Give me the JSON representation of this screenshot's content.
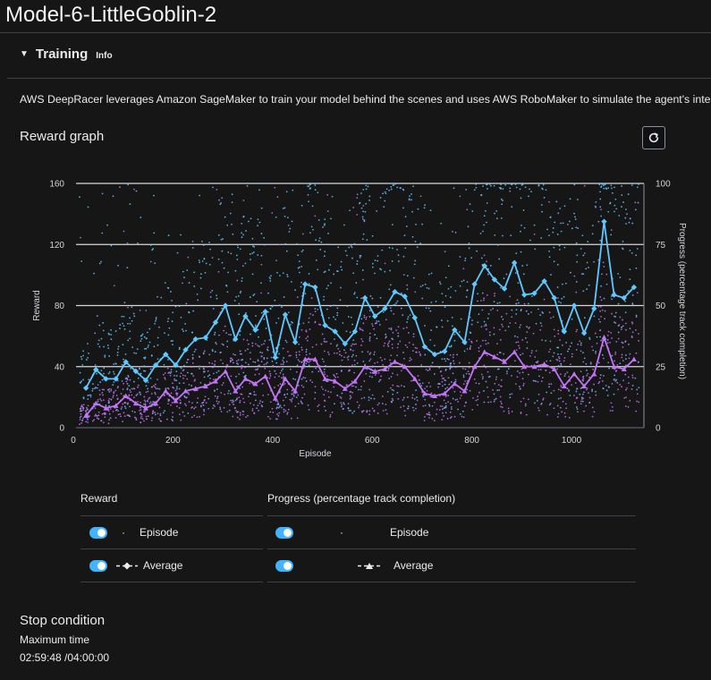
{
  "page": {
    "title": "Model-6-LittleGoblin-2"
  },
  "training": {
    "section_title": "Training",
    "info_label": "Info",
    "description": "AWS DeepRacer leverages Amazon SageMaker to train your model behind the scenes and uses AWS RoboMaker to simulate the agent's interaction"
  },
  "reward_graph": {
    "title": "Reward graph",
    "refresh_icon": "refresh-icon"
  },
  "chart_data": {
    "type": "line",
    "xlabel": "Episode",
    "ylabel": "Reward",
    "ylabel_right": "Progress (percentage track completion)",
    "xlim": [
      0,
      1140
    ],
    "ylim": [
      0,
      160
    ],
    "ylim_right": [
      0,
      100
    ],
    "x_ticks": [
      0,
      200,
      400,
      600,
      800,
      1000
    ],
    "y_ticks": [
      0,
      40,
      80,
      120,
      160
    ],
    "y_ticks_right": [
      0,
      25,
      50,
      75,
      100
    ],
    "grid": true,
    "colors": {
      "reward": "#5fc8ff",
      "progress": "#c274f5"
    },
    "series": [
      {
        "name": "Reward Average",
        "axis": "left",
        "x": [
          20,
          40,
          60,
          80,
          100,
          120,
          140,
          160,
          180,
          200,
          220,
          240,
          260,
          280,
          300,
          320,
          340,
          360,
          380,
          400,
          420,
          440,
          460,
          480,
          500,
          520,
          540,
          560,
          580,
          600,
          620,
          640,
          660,
          680,
          700,
          720,
          740,
          760,
          780,
          800,
          820,
          840,
          860,
          880,
          900,
          920,
          940,
          960,
          980,
          1000,
          1020,
          1040,
          1060,
          1080,
          1100,
          1120
        ],
        "values": [
          26,
          38,
          32,
          32,
          43,
          37,
          31,
          41,
          48,
          41,
          51,
          58,
          59,
          69,
          80,
          58,
          73,
          64,
          76,
          46,
          74,
          56,
          94,
          92,
          67,
          63,
          55,
          63,
          85,
          73,
          78,
          89,
          86,
          72,
          53,
          48,
          50,
          64,
          56,
          94,
          106,
          97,
          91,
          108,
          87,
          88,
          96,
          85,
          63,
          80,
          62,
          78,
          135,
          87,
          85,
          92
        ]
      },
      {
        "name": "Progress Average",
        "axis": "right",
        "x": [
          20,
          40,
          60,
          80,
          100,
          120,
          140,
          160,
          180,
          200,
          220,
          240,
          260,
          280,
          300,
          320,
          340,
          360,
          380,
          400,
          420,
          440,
          460,
          480,
          500,
          520,
          540,
          560,
          580,
          600,
          620,
          640,
          660,
          680,
          700,
          720,
          740,
          760,
          780,
          800,
          820,
          840,
          860,
          880,
          900,
          920,
          940,
          960,
          980,
          1000,
          1020,
          1040,
          1060,
          1080,
          1100,
          1120
        ],
        "values": [
          5,
          10,
          8,
          9,
          13,
          10,
          8,
          10,
          15,
          11,
          15,
          16,
          17,
          19,
          23,
          15,
          20,
          18,
          21,
          12,
          20,
          15,
          28,
          28,
          20,
          19,
          16,
          19,
          25,
          23,
          24,
          27,
          25,
          20,
          14,
          13,
          14,
          18,
          15,
          25,
          31,
          29,
          27,
          31,
          25,
          25,
          26,
          24,
          17,
          22,
          17,
          22,
          37,
          25,
          24,
          28
        ]
      }
    ]
  },
  "legend": {
    "reward_header": "Reward",
    "progress_header": "Progress (percentage track completion)",
    "episode_label": "Episode",
    "average_label": "Average"
  },
  "stop_condition": {
    "title": "Stop condition",
    "label": "Maximum time",
    "value": "02:59:48 /04:00:00"
  }
}
